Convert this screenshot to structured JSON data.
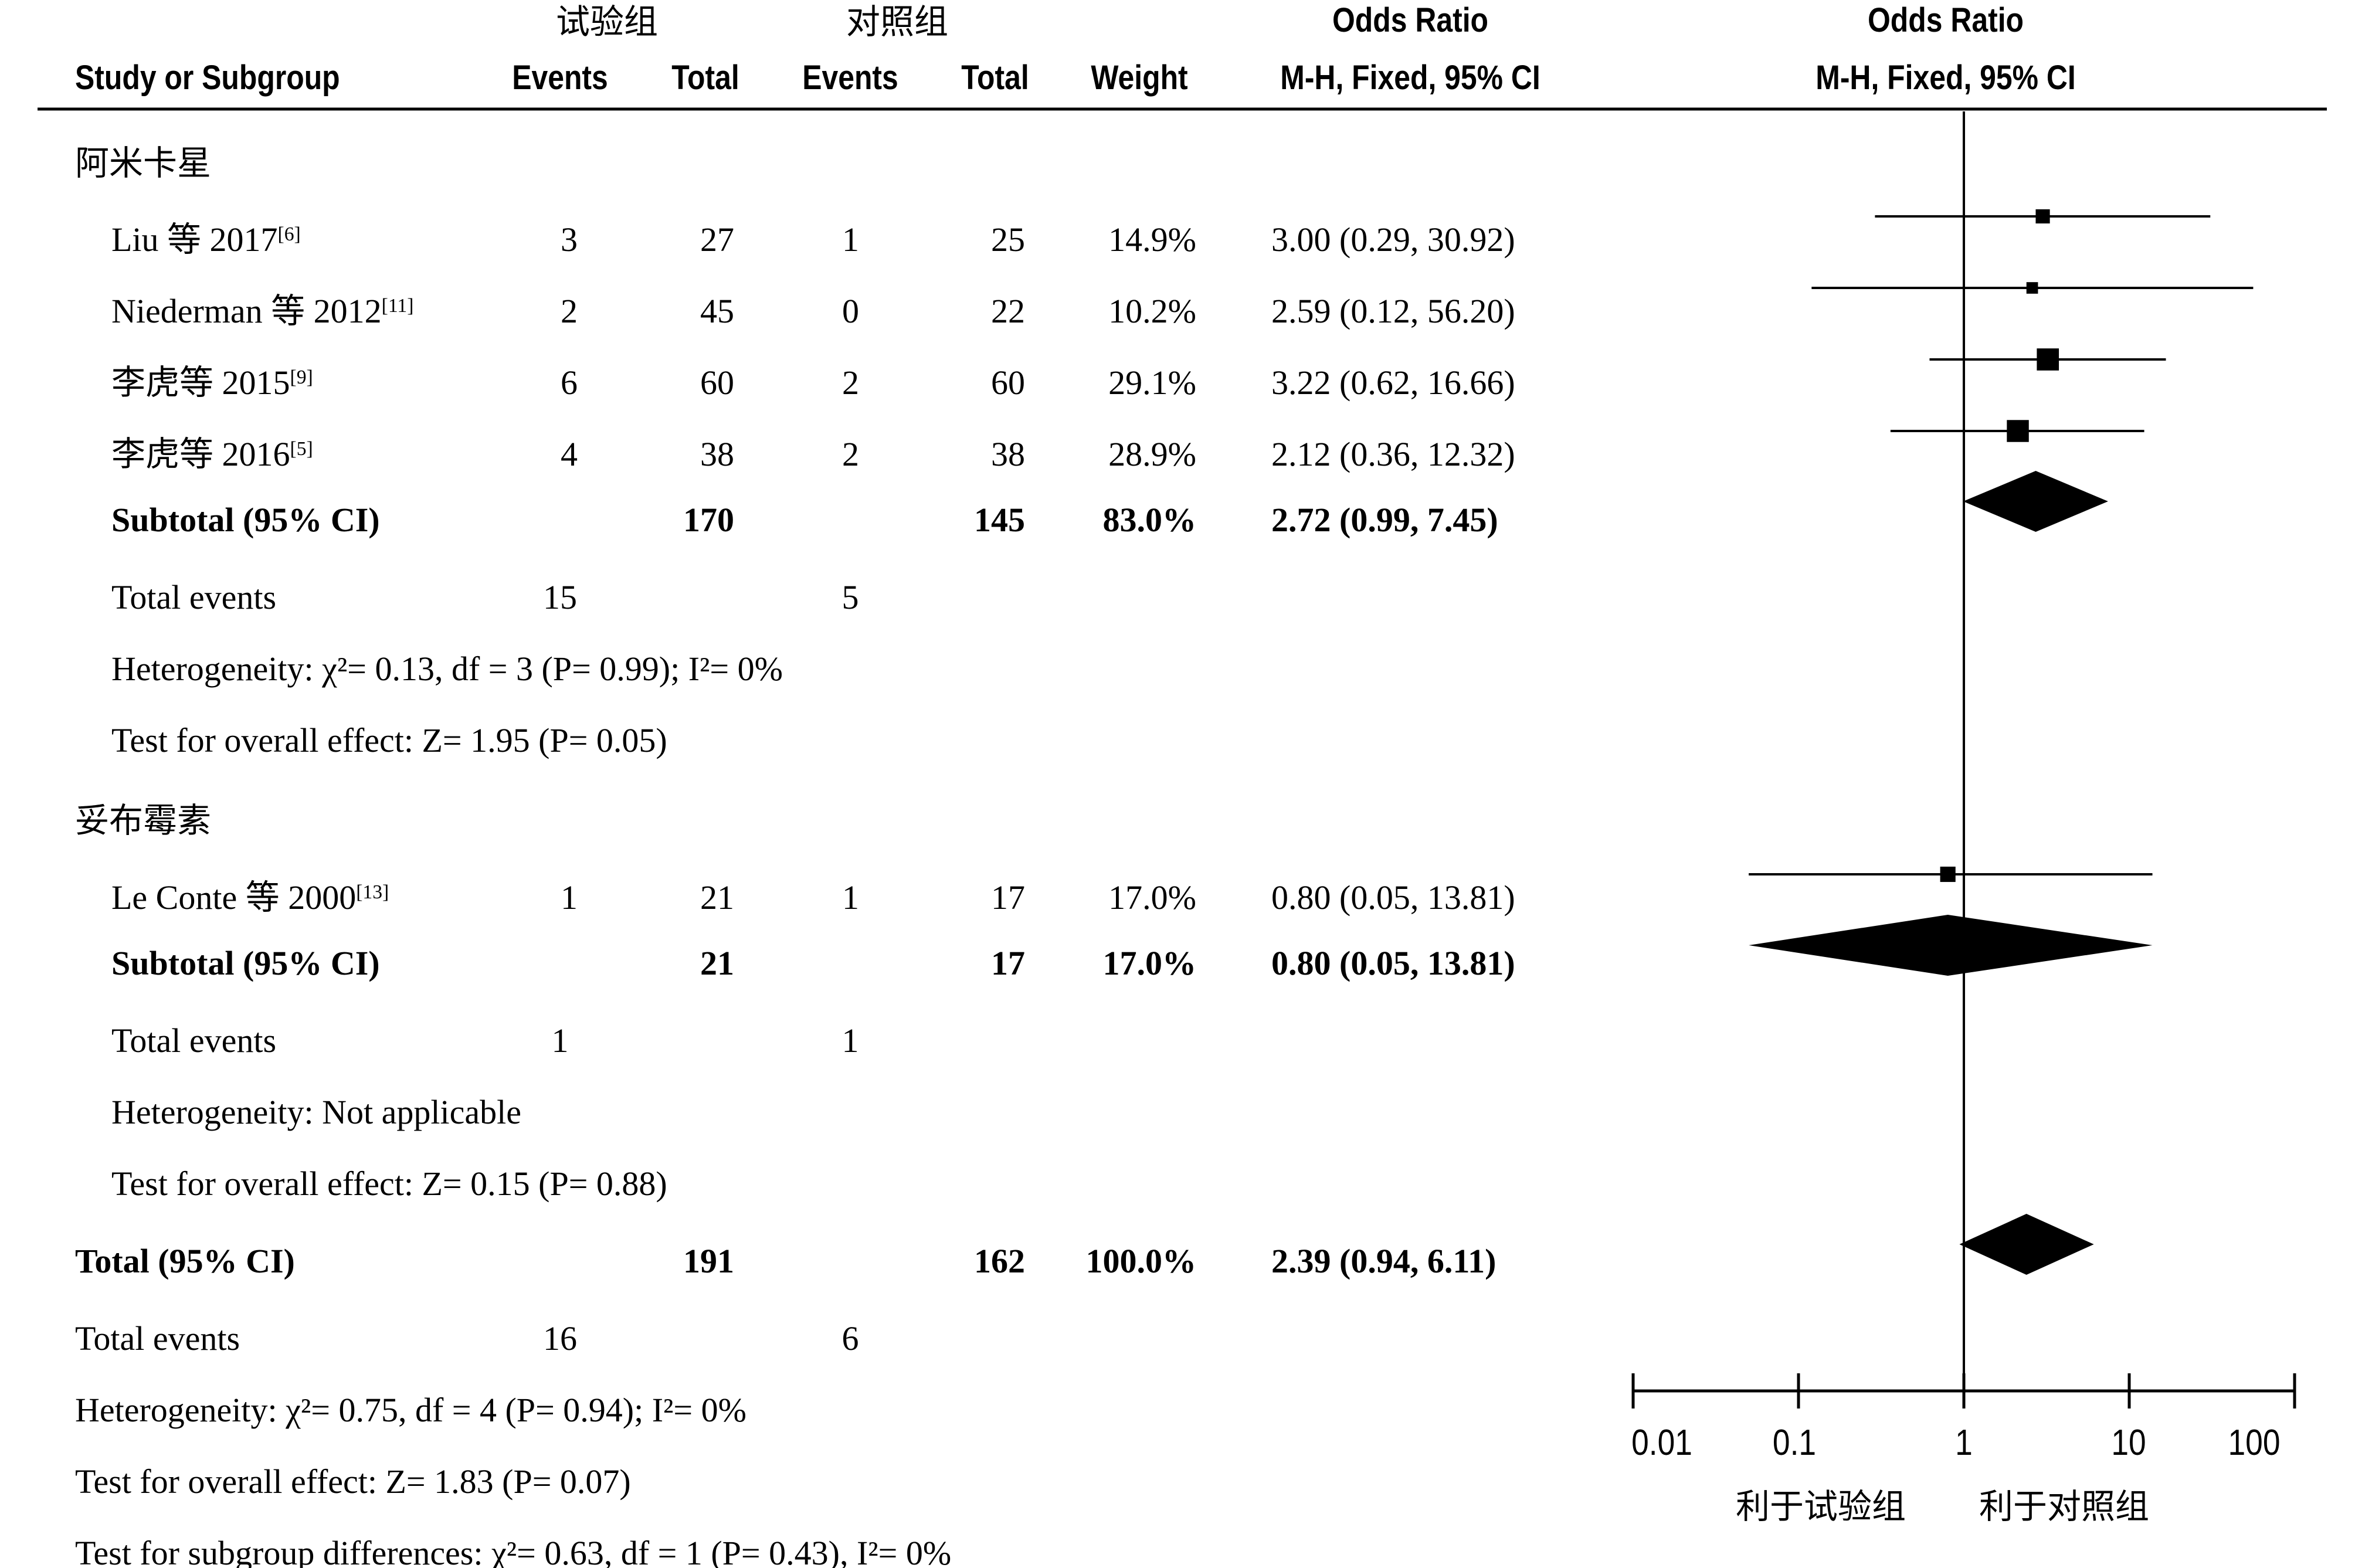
{
  "header": {
    "group_treat": "试验组",
    "group_ctrl": "对照组",
    "study_col": "Study or Subgroup",
    "events": "Events",
    "total": "Total",
    "weight": "Weight",
    "or_title": "Odds Ratio",
    "or_method": "M-H, Fixed, 95% CI"
  },
  "subgroups": [
    {
      "name": "阿米卡星",
      "studies": [
        {
          "name": "Liu 等 2017",
          "ref": "[6]",
          "e1": "3",
          "t1": "27",
          "e2": "1",
          "t2": "25",
          "weight": "14.9%",
          "ci_text": "3.00 (0.29, 30.92)"
        },
        {
          "name": "Niederman 等 2012",
          "ref": "[11]",
          "e1": "2",
          "t1": "45",
          "e2": "0",
          "t2": "22",
          "weight": "10.2%",
          "ci_text": "2.59 (0.12, 56.20)"
        },
        {
          "name": "李虎等 2015",
          "ref": "[9]",
          "e1": "6",
          "t1": "60",
          "e2": "2",
          "t2": "60",
          "weight": "29.1%",
          "ci_text": "3.22 (0.62, 16.66)"
        },
        {
          "name": "李虎等 2016",
          "ref": "[5]",
          "e1": "4",
          "t1": "38",
          "e2": "2",
          "t2": "38",
          "weight": "28.9%",
          "ci_text": "2.12 (0.36, 12.32)"
        }
      ],
      "subtotal": {
        "label": "Subtotal (95% CI)",
        "t1": "170",
        "t2": "145",
        "weight": "83.0%",
        "ci_text": "2.72 (0.99, 7.45)"
      },
      "total_events": {
        "label": "Total events",
        "e1": "15",
        "e2": "5"
      },
      "heterogeneity": "Heterogeneity: χ²= 0.13, df = 3 (P= 0.99); I²= 0%",
      "overall": "Test for overall effect: Z= 1.95 (P= 0.05)"
    },
    {
      "name": "妥布霉素",
      "studies": [
        {
          "name": "Le Conte 等 2000",
          "ref": "[13]",
          "e1": "1",
          "t1": "21",
          "e2": "1",
          "t2": "17",
          "weight": "17.0%",
          "ci_text": "0.80 (0.05, 13.81)"
        }
      ],
      "subtotal": {
        "label": "Subtotal (95% CI)",
        "t1": "21",
        "t2": "17",
        "weight": "17.0%",
        "ci_text": "0.80 (0.05, 13.81)"
      },
      "total_events": {
        "label": "Total events",
        "e1": "1",
        "e2": "1"
      },
      "heterogeneity": "Heterogeneity: Not applicable",
      "overall": "Test for overall effect: Z= 0.15 (P= 0.88)"
    }
  ],
  "total": {
    "label": "Total (95% CI)",
    "t1": "191",
    "t2": "162",
    "weight": "100.0%",
    "ci_text": "2.39 (0.94, 6.11)",
    "events_label": "Total events",
    "e1": "16",
    "e2": "6",
    "heterogeneity": "Heterogeneity: χ²= 0.75, df = 4 (P= 0.94); I²= 0%",
    "overall": "Test for overall effect: Z= 1.83 (P= 0.07)",
    "subgroup_diff": "Test for subgroup differences: χ²= 0.63, df = 1 (P= 0.43), I²= 0%"
  },
  "axis": {
    "ticks": [
      "0.01",
      "0.1",
      "1",
      "10",
      "100"
    ],
    "favours_left": "利于试验组",
    "favours_right": "利于对照组"
  },
  "chart_data": {
    "type": "forest",
    "scale": "log",
    "xlim": [
      0.01,
      100
    ],
    "ticks": [
      0.01,
      0.1,
      1,
      10,
      100
    ],
    "studies": [
      {
        "name": "Liu 等 2017",
        "or": 3.0,
        "lo": 0.29,
        "hi": 30.92,
        "weight": 14.9
      },
      {
        "name": "Niederman 等 2012",
        "or": 2.59,
        "lo": 0.12,
        "hi": 56.2,
        "weight": 10.2
      },
      {
        "name": "李虎等 2015",
        "or": 3.22,
        "lo": 0.62,
        "hi": 16.66,
        "weight": 29.1
      },
      {
        "name": "李虎等 2016",
        "or": 2.12,
        "lo": 0.36,
        "hi": 12.32,
        "weight": 28.9
      },
      {
        "name": "Le Conte 等 2000",
        "or": 0.8,
        "lo": 0.05,
        "hi": 13.81,
        "weight": 17.0
      }
    ],
    "pooled": [
      {
        "name": "Subtotal (95% CI)",
        "or": 2.72,
        "lo": 0.99,
        "hi": 7.45
      },
      {
        "name": "Subtotal (95% CI)",
        "or": 0.8,
        "lo": 0.05,
        "hi": 13.81
      },
      {
        "name": "Total (95% CI)",
        "or": 2.39,
        "lo": 0.94,
        "hi": 6.11
      }
    ]
  }
}
